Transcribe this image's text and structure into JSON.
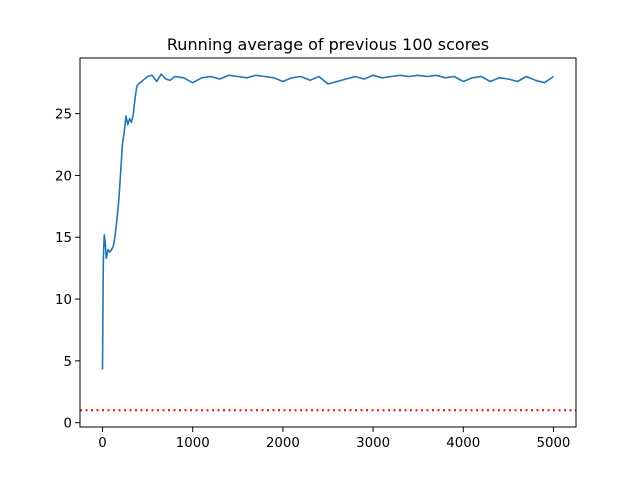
{
  "chart_data": {
    "type": "line",
    "title": "Running average of previous 100 scores",
    "xlabel": "",
    "ylabel": "",
    "xlim": [
      -250,
      5250
    ],
    "ylim": [
      -0.35,
      29.5
    ],
    "x_ticks": [
      0,
      1000,
      2000,
      3000,
      4000,
      5000
    ],
    "y_ticks": [
      0,
      5,
      10,
      15,
      20,
      25
    ],
    "grid": false,
    "legend": "none",
    "series": [
      {
        "color": "#1f77b4",
        "x": [
          0,
          5,
          10,
          20,
          30,
          40,
          50,
          60,
          80,
          100,
          120,
          140,
          160,
          180,
          200,
          220,
          240,
          260,
          280,
          300,
          320,
          340,
          360,
          380,
          400,
          450,
          500,
          550,
          600,
          650,
          700,
          750,
          800,
          900,
          1000,
          1100,
          1200,
          1300,
          1400,
          1500,
          1600,
          1700,
          1800,
          1900,
          2000,
          2100,
          2200,
          2300,
          2400,
          2500,
          2600,
          2700,
          2800,
          2900,
          3000,
          3100,
          3200,
          3300,
          3400,
          3500,
          3600,
          3700,
          3800,
          3900,
          4000,
          4100,
          4200,
          4300,
          4400,
          4500,
          4600,
          4700,
          4800,
          4900,
          5000
        ],
        "values": [
          4.3,
          10.0,
          13.5,
          15.2,
          14.5,
          13.3,
          13.6,
          14.0,
          13.8,
          14.0,
          14.3,
          15.2,
          16.5,
          18.0,
          20.2,
          22.5,
          23.5,
          24.8,
          24.1,
          24.6,
          24.3,
          24.9,
          26.2,
          27.2,
          27.4,
          27.7,
          28.0,
          28.1,
          27.6,
          28.2,
          27.8,
          27.7,
          28.0,
          27.9,
          27.5,
          27.9,
          28.0,
          27.8,
          28.1,
          28.0,
          27.9,
          28.1,
          28.0,
          27.9,
          27.6,
          27.9,
          28.0,
          27.7,
          28.0,
          27.4,
          27.6,
          27.8,
          28.0,
          27.8,
          28.1,
          27.9,
          28.0,
          28.1,
          28.0,
          28.1,
          28.0,
          28.1,
          27.9,
          28.0,
          27.6,
          27.9,
          28.0,
          27.6,
          27.9,
          27.8,
          27.6,
          28.0,
          27.7,
          27.5,
          28.0
        ]
      }
    ],
    "reference_line": {
      "y": 1.0,
      "color": "#ff0000",
      "style": "dotted"
    }
  }
}
